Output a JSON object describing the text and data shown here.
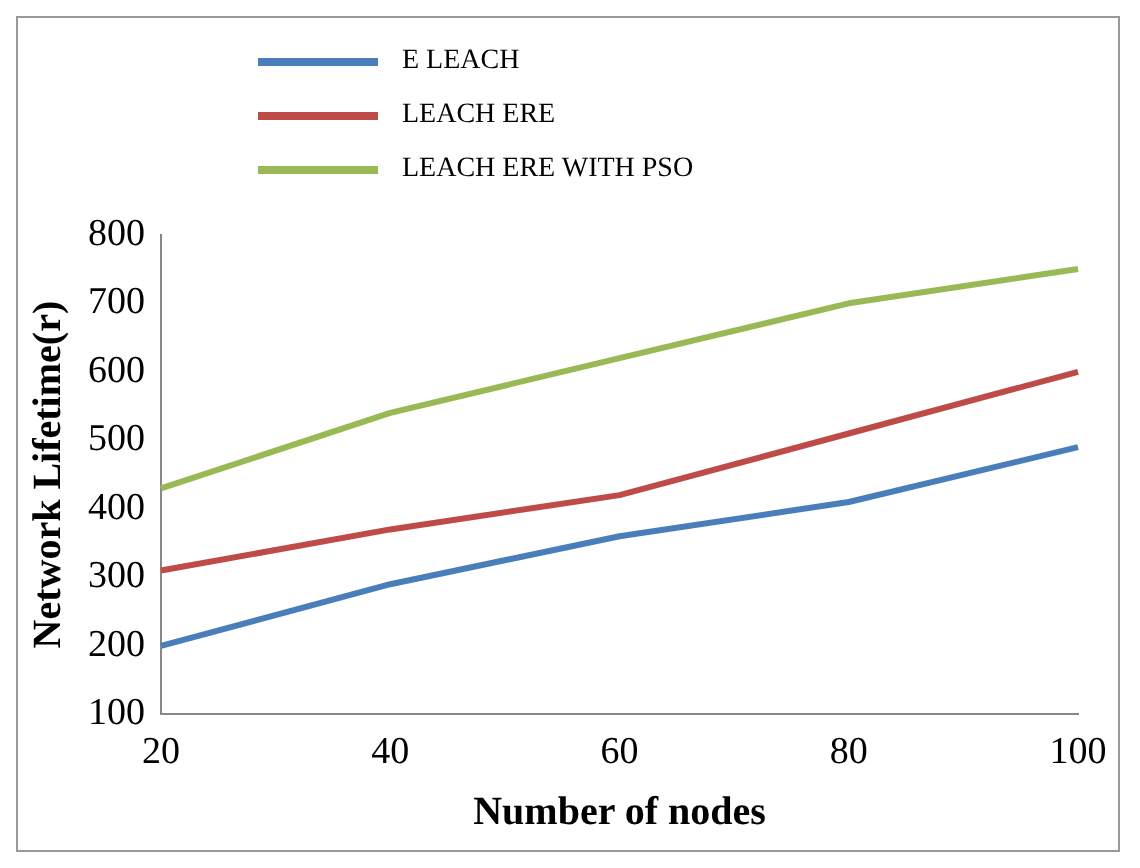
{
  "chart_data": {
    "type": "line",
    "xlabel": "Number of nodes",
    "ylabel": "Network Lifetime(r)",
    "categories": [
      "20",
      "40",
      "60",
      "80",
      "100"
    ],
    "series": [
      {
        "name": "E LEACH",
        "color": "#4a7ebb",
        "values": [
          200,
          290,
          360,
          410,
          490
        ]
      },
      {
        "name": "LEACH ERE",
        "color": "#be4b48",
        "values": [
          310,
          370,
          420,
          510,
          600
        ]
      },
      {
        "name": "LEACH ERE WITH PSO",
        "color": "#98b954",
        "values": [
          430,
          540,
          620,
          700,
          750
        ]
      }
    ],
    "ylim": [
      100,
      800
    ],
    "yticks": [
      100,
      200,
      300,
      400,
      500,
      600,
      700,
      800
    ],
    "grid": false,
    "legend": "top left",
    "marker": "none",
    "line_style": "solid"
  }
}
